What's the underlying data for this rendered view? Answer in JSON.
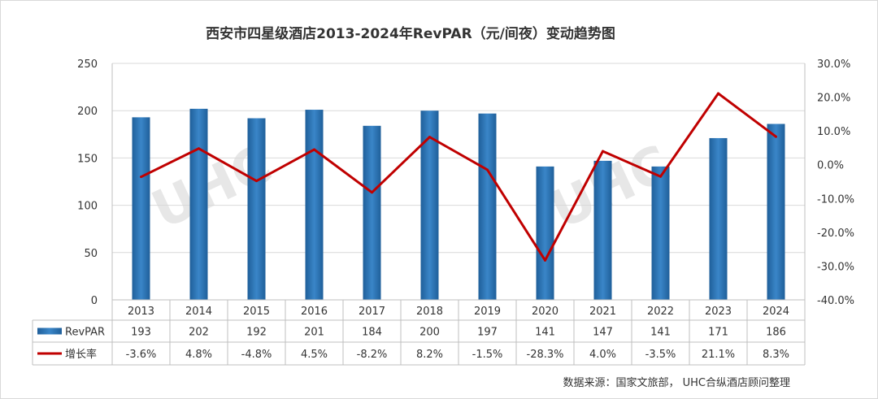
{
  "chart_data": {
    "type": "bar",
    "title": "西安市四星级酒店2013-2024年RevPAR（元/间夜）变动趋势图",
    "categories": [
      "2013",
      "2014",
      "2015",
      "2016",
      "2017",
      "2018",
      "2019",
      "2020",
      "2021",
      "2022",
      "2023",
      "2024"
    ],
    "series": [
      {
        "name": "RevPAR",
        "type": "bar",
        "axis": "left",
        "values": [
          193,
          202,
          192,
          201,
          184,
          200,
          197,
          141,
          147,
          141,
          171,
          186
        ],
        "color": "#2e74b5"
      },
      {
        "name": "增长率",
        "type": "line",
        "axis": "right",
        "values": [
          -3.6,
          4.8,
          -4.8,
          4.5,
          -8.2,
          8.2,
          -1.5,
          -28.3,
          4.0,
          -3.5,
          21.1,
          8.3
        ],
        "color": "#c00000"
      }
    ],
    "table_rows": [
      {
        "name": "RevPAR",
        "cells": [
          "193",
          "202",
          "192",
          "201",
          "184",
          "200",
          "197",
          "141",
          "147",
          "141",
          "171",
          "186"
        ]
      },
      {
        "name": "增长率",
        "cells": [
          "-3.6%",
          "4.8%",
          "-4.8%",
          "4.5%",
          "-8.2%",
          "8.2%",
          "-1.5%",
          "-28.3%",
          "4.0%",
          "-3.5%",
          "21.1%",
          "8.3%"
        ]
      }
    ],
    "y_left": {
      "range": [
        0,
        250
      ],
      "ticks": [
        "0",
        "50",
        "100",
        "150",
        "200",
        "250"
      ]
    },
    "y_right": {
      "range": [
        -40,
        30
      ],
      "ticks": [
        "-40.0%",
        "-30.0%",
        "-20.0%",
        "-10.0%",
        "0.0%",
        "10.0%",
        "20.0%",
        "30.0%"
      ]
    },
    "grid": true,
    "legend": "data-table"
  },
  "source_note": "数据来源：国家文旅部，  UHC合纵酒店顾问整理",
  "watermark": {
    "text": "UHC",
    "color": "#e7e7e7"
  }
}
